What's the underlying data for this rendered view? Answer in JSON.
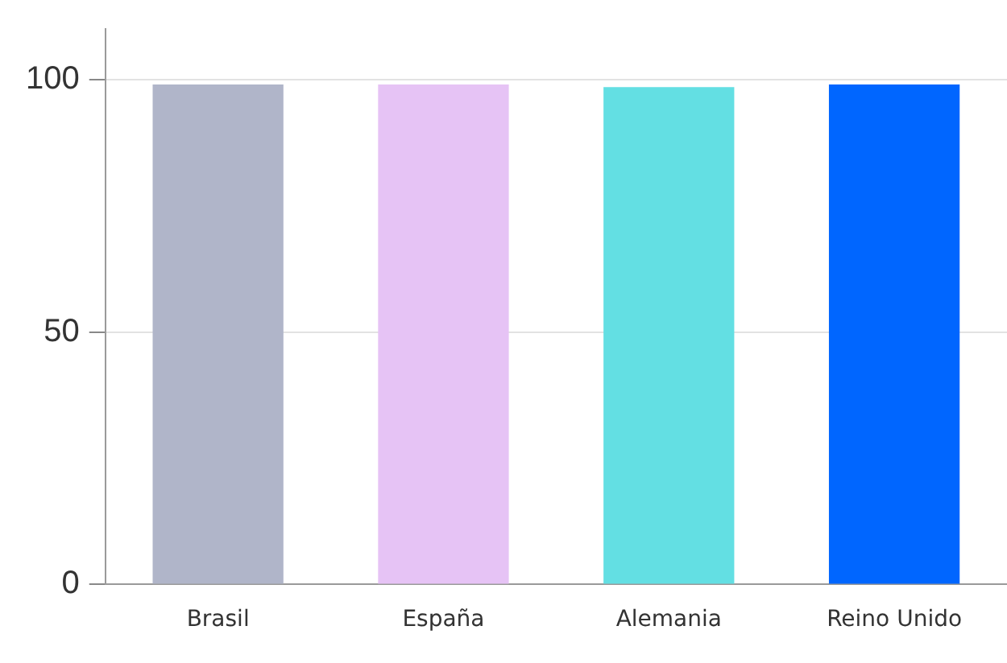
{
  "chart_data": {
    "type": "bar",
    "categories": [
      "Brasil",
      "España",
      "Alemania",
      "Reino Unido"
    ],
    "values": [
      99,
      99,
      98.5,
      99
    ],
    "colors": [
      "#b0b5c9",
      "#e6c3f5",
      "#63dfe3",
      "#0066ff"
    ],
    "ylim": [
      0,
      110
    ],
    "yticks": [
      0,
      50,
      100
    ],
    "grid": "y",
    "legend": false
  }
}
